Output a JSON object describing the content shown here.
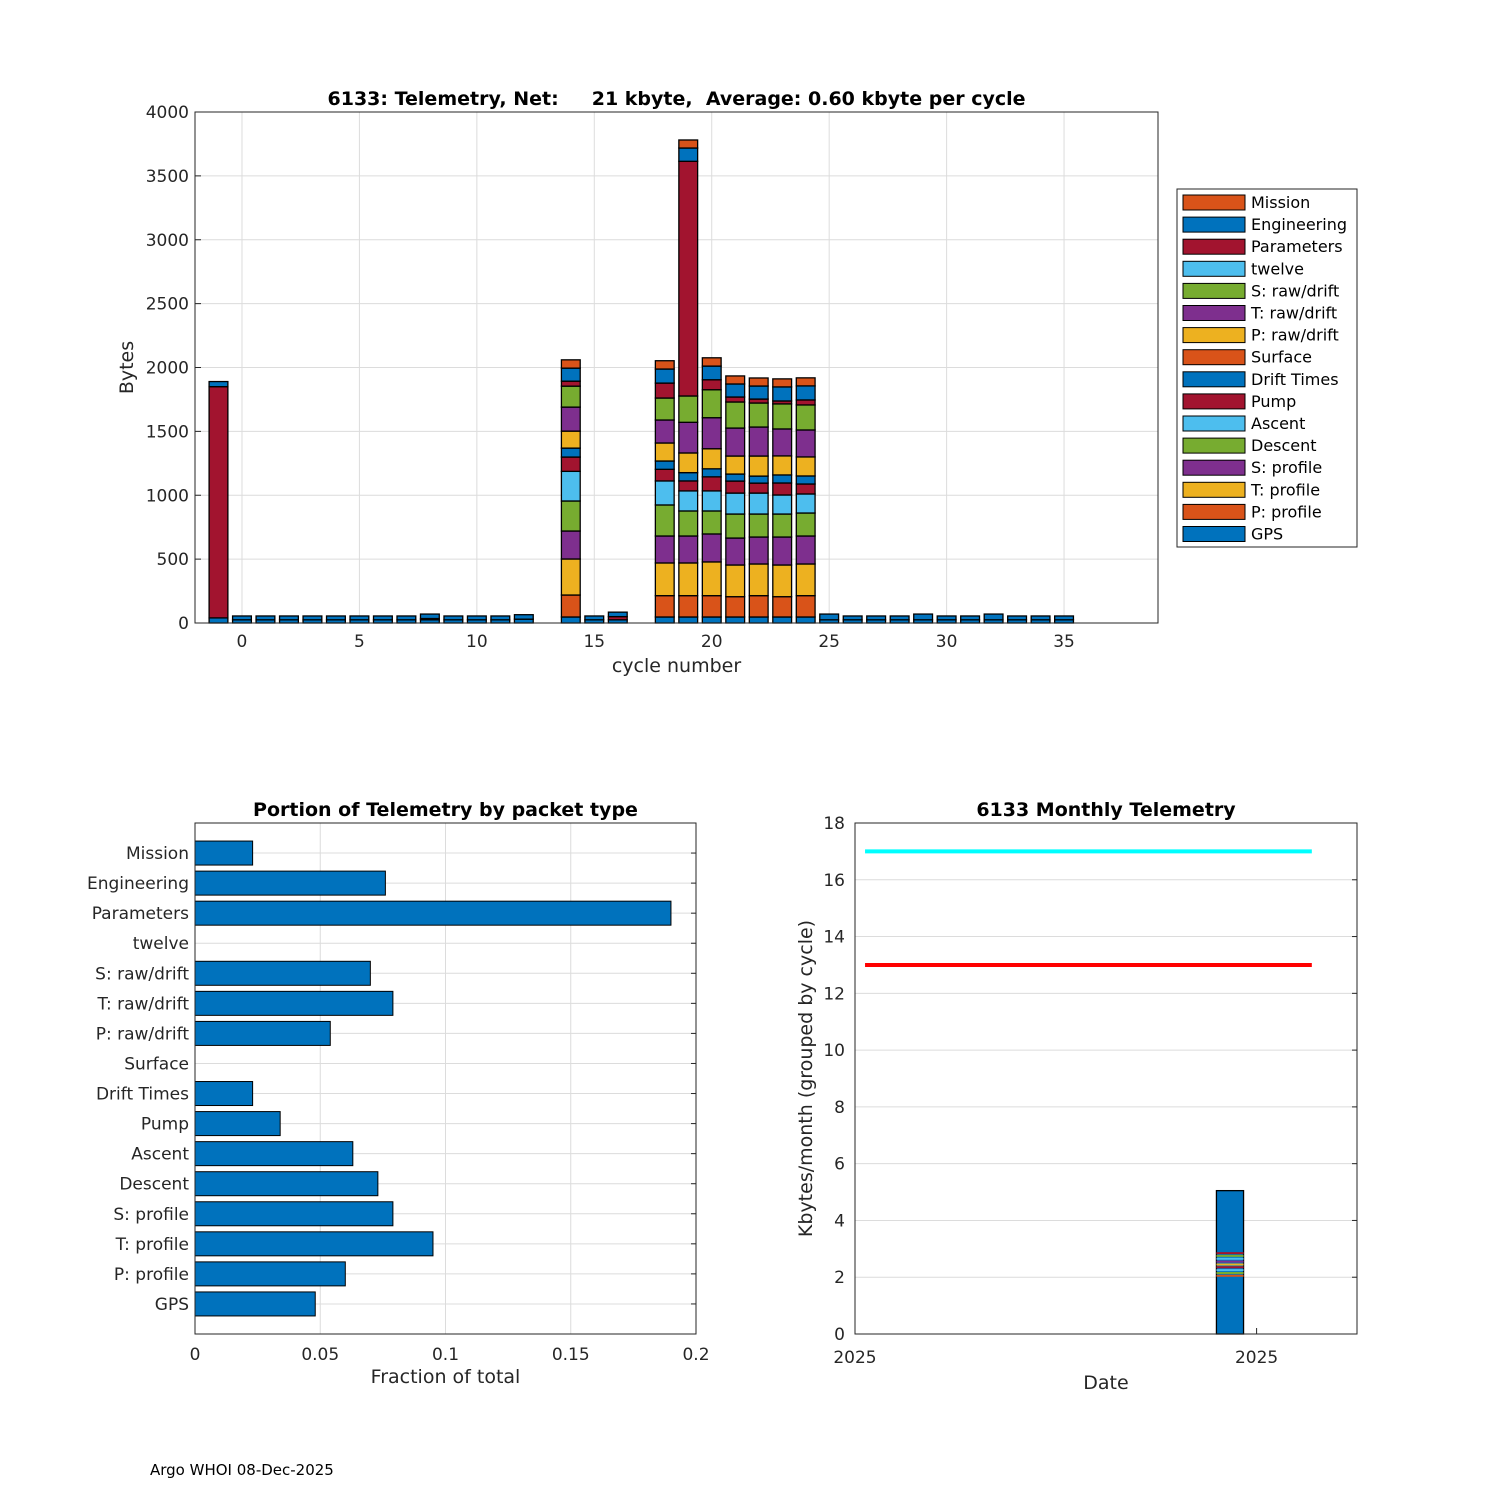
{
  "chart_data": [
    {
      "type": "bar",
      "stacked": true,
      "title": "6133: Telemetry, Net:     21 kbyte,  Average: 0.60 kbyte per cycle",
      "xlabel": "cycle number",
      "ylabel": "Bytes",
      "xlim": [
        -2,
        39
      ],
      "ylim": [
        0,
        4000
      ],
      "xticks": [
        0,
        5,
        10,
        15,
        20,
        25,
        30,
        35
      ],
      "yticks": [
        0,
        500,
        1000,
        1500,
        2000,
        2500,
        3000,
        3500,
        4000
      ],
      "grid": true,
      "legend_position": "right-outside",
      "series": [
        {
          "name": "GPS",
          "color": "#0072BD"
        },
        {
          "name": "P: profile",
          "color": "#D95319"
        },
        {
          "name": "T: profile",
          "color": "#EDB120"
        },
        {
          "name": "S: profile",
          "color": "#7E2F8E"
        },
        {
          "name": "Descent",
          "color": "#77AC30"
        },
        {
          "name": "Ascent",
          "color": "#4DBEEE"
        },
        {
          "name": "Pump",
          "color": "#A2142F"
        },
        {
          "name": "Drift Times",
          "color": "#0072BD"
        },
        {
          "name": "Surface",
          "color": "#D95319"
        },
        {
          "name": "P: raw/drift",
          "color": "#EDB120"
        },
        {
          "name": "T: raw/drift",
          "color": "#7E2F8E"
        },
        {
          "name": "S: raw/drift",
          "color": "#77AC30"
        },
        {
          "name": "twelve",
          "color": "#4DBEEE"
        },
        {
          "name": "Parameters",
          "color": "#A2142F"
        },
        {
          "name": "Engineering",
          "color": "#0072BD"
        },
        {
          "name": "Mission",
          "color": "#D95319"
        }
      ],
      "cycles": [
        -1,
        0,
        1,
        2,
        3,
        4,
        5,
        6,
        7,
        8,
        9,
        10,
        11,
        12,
        14,
        15,
        16,
        18,
        19,
        20,
        21,
        22,
        23,
        24,
        25,
        26,
        27,
        28,
        29,
        30,
        31,
        32,
        33,
        34,
        35
      ],
      "values_by_cycle": [
        [
          40,
          0,
          0,
          0,
          0,
          0,
          0,
          0,
          0,
          0,
          0,
          0,
          0,
          1810,
          40,
          0
        ],
        [
          25,
          0,
          0,
          0,
          0,
          0,
          0,
          0,
          0,
          0,
          0,
          0,
          0,
          0,
          30,
          0
        ],
        [
          25,
          0,
          0,
          0,
          0,
          0,
          0,
          0,
          0,
          0,
          0,
          0,
          0,
          0,
          30,
          0
        ],
        [
          25,
          0,
          0,
          0,
          0,
          0,
          0,
          0,
          0,
          0,
          0,
          0,
          0,
          0,
          30,
          0
        ],
        [
          25,
          0,
          0,
          0,
          0,
          0,
          0,
          0,
          0,
          0,
          0,
          0,
          0,
          0,
          30,
          0
        ],
        [
          25,
          0,
          0,
          0,
          0,
          0,
          0,
          0,
          0,
          0,
          0,
          0,
          0,
          0,
          30,
          0
        ],
        [
          25,
          0,
          0,
          0,
          0,
          0,
          0,
          0,
          0,
          0,
          0,
          0,
          0,
          0,
          30,
          0
        ],
        [
          25,
          0,
          0,
          0,
          0,
          0,
          0,
          0,
          0,
          0,
          0,
          0,
          0,
          0,
          30,
          0
        ],
        [
          25,
          0,
          0,
          0,
          0,
          0,
          0,
          0,
          0,
          0,
          0,
          0,
          0,
          0,
          30,
          0
        ],
        [
          25,
          0,
          0,
          0,
          0,
          0,
          10,
          0,
          0,
          0,
          0,
          0,
          0,
          0,
          35,
          0
        ],
        [
          25,
          0,
          0,
          0,
          0,
          0,
          0,
          0,
          0,
          0,
          0,
          0,
          0,
          0,
          30,
          0
        ],
        [
          25,
          0,
          0,
          0,
          0,
          0,
          0,
          0,
          0,
          0,
          0,
          0,
          0,
          0,
          30,
          0
        ],
        [
          25,
          0,
          0,
          0,
          0,
          0,
          0,
          0,
          0,
          0,
          0,
          0,
          0,
          0,
          30,
          0
        ],
        [
          30,
          0,
          0,
          0,
          0,
          0,
          0,
          0,
          0,
          0,
          0,
          0,
          0,
          0,
          35,
          0
        ],
        [
          47,
          172,
          282,
          219,
          235,
          232,
          112,
          70,
          0,
          133,
          188,
          164,
          0,
          39,
          102,
          65
        ],
        [
          25,
          0,
          0,
          0,
          0,
          0,
          0,
          0,
          0,
          0,
          0,
          0,
          0,
          0,
          30,
          0
        ],
        [
          25,
          0,
          0,
          0,
          0,
          0,
          25,
          0,
          0,
          0,
          0,
          0,
          0,
          0,
          35,
          0
        ],
        [
          47,
          167,
          256,
          211,
          243,
          188,
          91,
          65,
          0,
          141,
          180,
          172,
          0,
          117,
          110,
          65
        ],
        [
          47,
          167,
          256,
          211,
          196,
          157,
          78,
          65,
          0,
          154,
          240,
          206,
          0,
          1837,
          104,
          63
        ],
        [
          47,
          167,
          264,
          219,
          180,
          157,
          110,
          63,
          0,
          157,
          243,
          219,
          0,
          78,
          107,
          65
        ],
        [
          47,
          159,
          248,
          211,
          188,
          164,
          94,
          55,
          0,
          141,
          219,
          204,
          0,
          39,
          102,
          63
        ],
        [
          47,
          167,
          248,
          211,
          180,
          164,
          78,
          55,
          0,
          157,
          227,
          188,
          0,
          31,
          102,
          63
        ],
        [
          47,
          159,
          248,
          219,
          180,
          149,
          94,
          63,
          0,
          149,
          211,
          196,
          0,
          23,
          110,
          63
        ],
        [
          47,
          167,
          248,
          219,
          180,
          149,
          78,
          63,
          0,
          149,
          211,
          196,
          0,
          39,
          110,
          63
        ],
        [
          25,
          0,
          0,
          0,
          0,
          0,
          0,
          0,
          0,
          0,
          0,
          0,
          0,
          0,
          45,
          0
        ],
        [
          25,
          0,
          0,
          0,
          0,
          0,
          0,
          0,
          0,
          0,
          0,
          0,
          0,
          0,
          30,
          0
        ],
        [
          25,
          0,
          0,
          0,
          0,
          0,
          0,
          0,
          0,
          0,
          0,
          0,
          0,
          0,
          30,
          0
        ],
        [
          25,
          0,
          0,
          0,
          0,
          0,
          0,
          0,
          0,
          0,
          0,
          0,
          0,
          0,
          30,
          0
        ],
        [
          25,
          0,
          0,
          0,
          0,
          0,
          0,
          0,
          0,
          0,
          0,
          0,
          0,
          0,
          45,
          0
        ],
        [
          25,
          0,
          0,
          0,
          0,
          0,
          0,
          0,
          0,
          0,
          0,
          0,
          0,
          0,
          30,
          0
        ],
        [
          25,
          0,
          0,
          0,
          0,
          0,
          0,
          0,
          0,
          0,
          0,
          0,
          0,
          0,
          30,
          0
        ],
        [
          25,
          0,
          0,
          0,
          0,
          0,
          0,
          0,
          0,
          0,
          0,
          0,
          0,
          0,
          45,
          0
        ],
        [
          25,
          0,
          0,
          0,
          0,
          0,
          0,
          0,
          0,
          0,
          0,
          0,
          0,
          0,
          30,
          0
        ],
        [
          25,
          0,
          0,
          0,
          0,
          0,
          0,
          0,
          0,
          0,
          0,
          0,
          0,
          0,
          30,
          0
        ],
        [
          25,
          0,
          0,
          0,
          0,
          0,
          0,
          0,
          0,
          0,
          0,
          0,
          0,
          0,
          30,
          0
        ]
      ]
    },
    {
      "type": "bar",
      "orientation": "horizontal",
      "title": "Portion of Telemetry by packet type",
      "xlabel": "Fraction of total",
      "xlim": [
        0,
        0.2
      ],
      "xticks": [
        0,
        0.05,
        0.1,
        0.15,
        0.2
      ],
      "xtick_labels": [
        "0",
        "0.05",
        "0.1",
        "0.15",
        "0.2"
      ],
      "grid": true,
      "color": "#0072BD",
      "categories": [
        "GPS",
        "P: profile",
        "T: profile",
        "S: profile",
        "Descent",
        "Ascent",
        "Pump",
        "Drift Times",
        "Surface",
        "P: raw/drift",
        "T: raw/drift",
        "S: raw/drift",
        "twelve",
        "Parameters",
        "Engineering",
        "Mission"
      ],
      "values": [
        0.048,
        0.06,
        0.095,
        0.079,
        0.073,
        0.063,
        0.034,
        0.023,
        0,
        0.054,
        0.079,
        0.07,
        0,
        0.19,
        0.076,
        0.023
      ]
    },
    {
      "type": "bar",
      "title": "6133 Monthly Telemetry",
      "xlabel": "Date",
      "ylabel": "Kbytes/month (grouped by cycle)",
      "ylim": [
        0,
        18
      ],
      "yticks": [
        0,
        2,
        4,
        6,
        8,
        10,
        12,
        14,
        16,
        18
      ],
      "xlim": [
        0,
        100
      ],
      "xticks": [
        0,
        80
      ],
      "xtick_labels": [
        "2025",
        "2025"
      ],
      "grid": true,
      "bar": {
        "x": 74.7,
        "total": 5.05,
        "color": "#0072BD",
        "stripes": [
          2.05,
          2.15,
          2.25,
          2.35,
          2.45,
          2.55,
          2.65,
          2.75,
          2.85
        ],
        "stripe_colors": [
          "#D95319",
          "#77AC30",
          "#4DBEEE",
          "#A2142F",
          "#EDB120",
          "#7E2F8E",
          "#4DBEEE",
          "#77AC30",
          "#A2142F"
        ]
      },
      "lines": [
        {
          "y": 17,
          "x_range": [
            2,
            91
          ],
          "color": "#00FFFF"
        },
        {
          "y": 13,
          "x_range": [
            2,
            91
          ],
          "color": "#FF0000"
        }
      ]
    }
  ],
  "footer": "Argo WHOI 08-Dec-2025"
}
